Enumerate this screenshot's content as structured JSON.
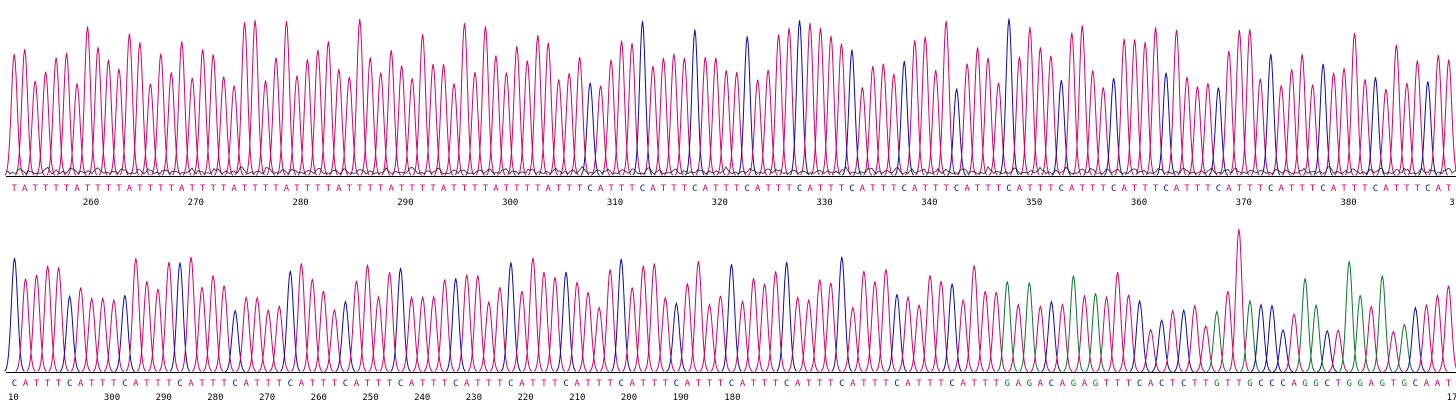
{
  "colors": {
    "A": "#d6006b",
    "T": "#d6006b",
    "C": "#0a0aa8",
    "G": "#0a7a2a",
    "N": "#000000",
    "axis": "#000000",
    "noise": "#222222"
  },
  "chart_data": [
    {
      "type": "line",
      "name_hint": "",
      "sequence": "TATTTTATTTTATTTTATTTTATTTTATTTTATTTTATTTTATTTTATTTTATTTCATTTCATTTCATTTCATTTCATTTCATTTCATTTCATTTCATTTCATTTCATTTCATTTCATTTCATTTCATTTCATTTCAT",
      "positions": [
        260,
        270,
        280,
        290,
        300,
        310,
        320,
        330,
        340,
        350,
        360,
        370,
        380,
        3
      ],
      "position_direction": "ascending"
    },
    {
      "type": "line",
      "name_hint": "",
      "sequence": "CATTTCATTTCATTTCATTTCATTTCATTTCATTTCATTTCATTTCATTTCATTTCATTTCATTTCATTTCATTTCATTTCATTTCATTTGAGACAGAGTTTCACTCTTGTTGCCCAGGCTGGAGTGCAAT",
      "positions": [
        10,
        300,
        290,
        280,
        270,
        260,
        250,
        240,
        230,
        220,
        210,
        200,
        190,
        180,
        17
      ],
      "position_direction": "descending"
    }
  ]
}
